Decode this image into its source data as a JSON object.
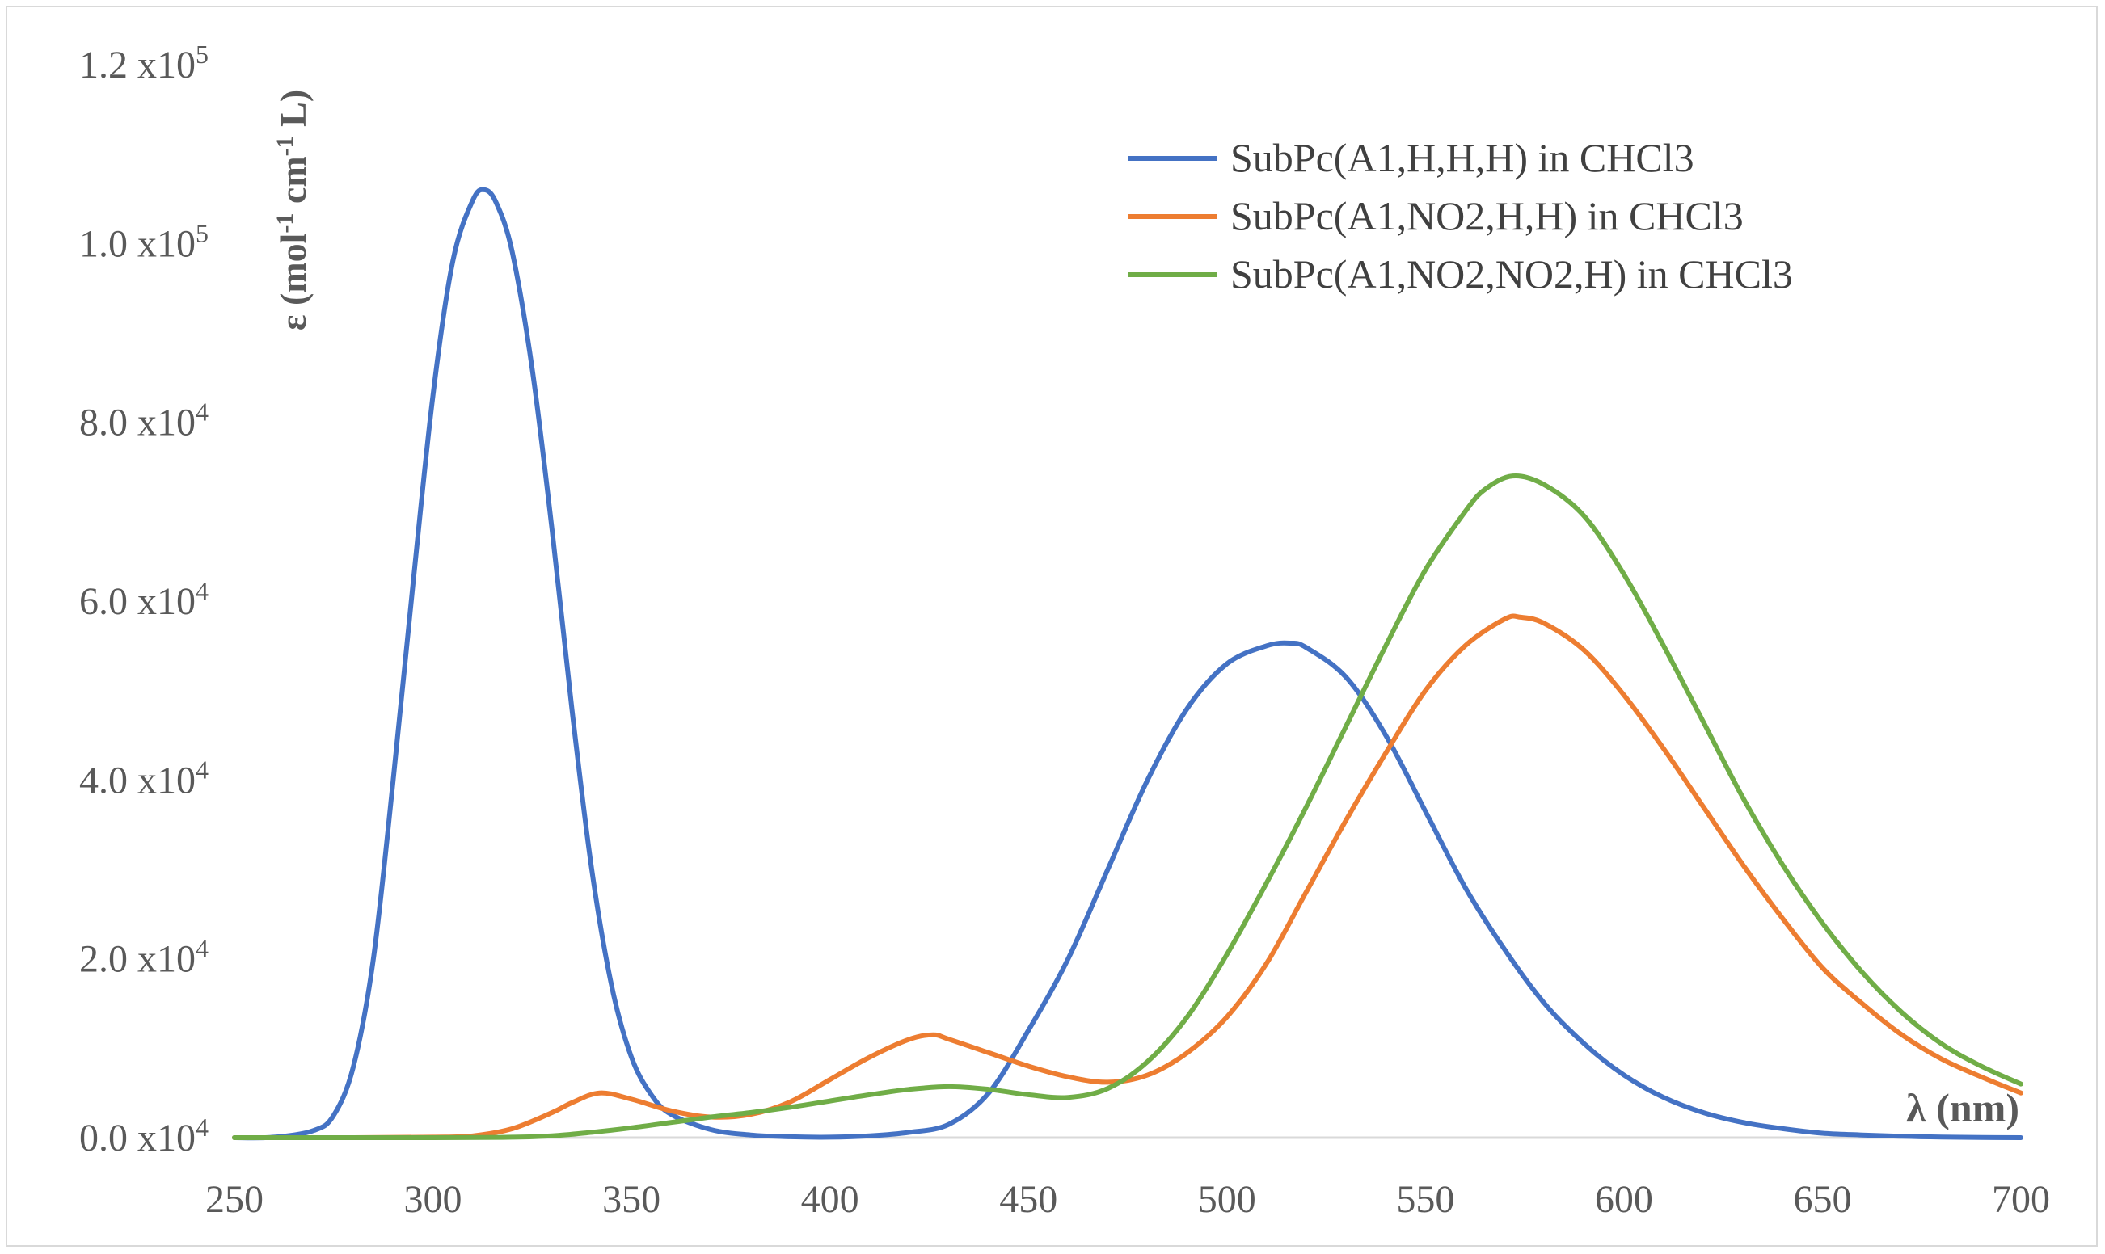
{
  "chart_data": {
    "type": "line",
    "title": "",
    "xlabel": "λ (nm)",
    "ylabel": {
      "prefix": "ε (mol",
      "sup1": "-1",
      "middle": " cm",
      "sup2": "-1",
      "suffix": " L)"
    },
    "xlim": [
      250,
      700
    ],
    "ylim": [
      0,
      120000
    ],
    "grid": false,
    "legend_position": "top-right",
    "x_ticks": [
      {
        "value": 250,
        "label": "250"
      },
      {
        "value": 300,
        "label": "300"
      },
      {
        "value": 350,
        "label": "350"
      },
      {
        "value": 400,
        "label": "400"
      },
      {
        "value": 450,
        "label": "450"
      },
      {
        "value": 500,
        "label": "500"
      },
      {
        "value": 550,
        "label": "550"
      },
      {
        "value": 600,
        "label": "600"
      },
      {
        "value": 650,
        "label": "650"
      },
      {
        "value": 700,
        "label": "700"
      }
    ],
    "y_ticks": [
      {
        "value": 0,
        "mantissa": "0.0 x10",
        "exponent": "4"
      },
      {
        "value": 20000,
        "mantissa": "2.0 x10",
        "exponent": "4"
      },
      {
        "value": 40000,
        "mantissa": "4.0 x10",
        "exponent": "4"
      },
      {
        "value": 60000,
        "mantissa": "6.0 x10",
        "exponent": "4"
      },
      {
        "value": 80000,
        "mantissa": "8.0 x10",
        "exponent": "4"
      },
      {
        "value": 100000,
        "mantissa": "1.0 x10",
        "exponent": "5"
      },
      {
        "value": 120000,
        "mantissa": "1.2 x10",
        "exponent": "5"
      }
    ],
    "series": [
      {
        "name": "SubPc(A1,H,H,H) in CHCl3",
        "color": "#4472c4",
        "x": [
          250,
          260,
          270,
          275,
          280,
          285,
          290,
          295,
          300,
          305,
          310,
          313,
          316,
          320,
          325,
          330,
          335,
          340,
          345,
          350,
          355,
          360,
          370,
          380,
          390,
          400,
          410,
          420,
          430,
          440,
          450,
          460,
          470,
          480,
          490,
          500,
          510,
          516,
          520,
          530,
          540,
          550,
          560,
          570,
          580,
          590,
          600,
          610,
          620,
          630,
          640,
          650,
          660,
          670,
          680,
          690,
          700
        ],
        "y": [
          0,
          50,
          800,
          2500,
          8000,
          20000,
          40000,
          62000,
          83000,
          98000,
          104800,
          106000,
          104500,
          99000,
          86000,
          68000,
          48000,
          30000,
          17000,
          9000,
          4800,
          2600,
          900,
          300,
          100,
          50,
          200,
          600,
          1500,
          5000,
          12000,
          20000,
          30000,
          40000,
          48000,
          53000,
          55000,
          55300,
          54800,
          51500,
          45000,
          36500,
          28000,
          21000,
          15000,
          10500,
          7000,
          4500,
          2800,
          1700,
          1000,
          500,
          300,
          150,
          60,
          20,
          0
        ]
      },
      {
        "name": "SubPc(A1,NO2,H,H) in CHCl3",
        "color": "#ed7d31",
        "x": [
          250,
          280,
          300,
          310,
          320,
          330,
          335,
          342,
          350,
          360,
          370,
          380,
          390,
          400,
          410,
          420,
          426,
          430,
          440,
          450,
          460,
          470,
          480,
          490,
          500,
          510,
          520,
          530,
          540,
          550,
          560,
          570,
          574,
          580,
          590,
          600,
          610,
          620,
          630,
          640,
          650,
          660,
          670,
          680,
          690,
          700
        ],
        "y": [
          0,
          0,
          50,
          200,
          1000,
          2800,
          3900,
          5000,
          4300,
          3000,
          2300,
          2600,
          4000,
          6500,
          9000,
          11000,
          11500,
          11000,
          9500,
          8000,
          6800,
          6200,
          7000,
          9500,
          13500,
          19500,
          27500,
          35500,
          43000,
          50000,
          55000,
          58000,
          58200,
          57500,
          54500,
          49500,
          43500,
          37000,
          30500,
          24500,
          19000,
          15000,
          11500,
          8800,
          6800,
          5000
        ]
      },
      {
        "name": "SubPc(A1,NO2,NO2,H) in CHCl3",
        "color": "#70ad47",
        "x": [
          250,
          300,
          320,
          330,
          340,
          350,
          360,
          370,
          380,
          390,
          400,
          410,
          420,
          430,
          440,
          450,
          460,
          470,
          480,
          490,
          500,
          510,
          520,
          530,
          540,
          550,
          560,
          565,
          572,
          580,
          590,
          600,
          610,
          620,
          630,
          640,
          650,
          660,
          670,
          680,
          690,
          700
        ],
        "y": [
          0,
          0,
          50,
          200,
          600,
          1100,
          1700,
          2300,
          2800,
          3400,
          4100,
          4800,
          5400,
          5700,
          5400,
          4800,
          4500,
          5500,
          8500,
          13500,
          20500,
          28500,
          37000,
          46000,
          55000,
          63500,
          70000,
          72500,
          74000,
          73000,
          69500,
          63000,
          55000,
          46500,
          38000,
          30500,
          24000,
          18500,
          14000,
          10500,
          8000,
          6000
        ]
      }
    ]
  }
}
